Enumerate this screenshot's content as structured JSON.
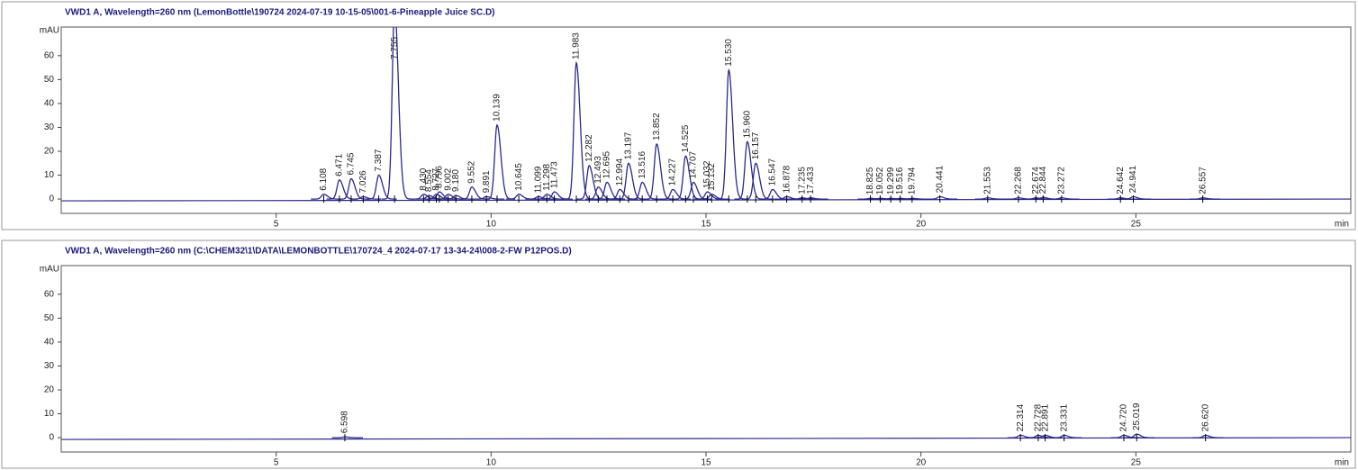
{
  "chart_data": [
    {
      "type": "line",
      "title": "VWD1 A, Wavelength=260 nm (LemonBottle\\190724 2024-07-19 10-15-05\\001-6-Pineapple Juice SC.D)",
      "xlabel": "min",
      "ylabel": "mAU",
      "color": "#2a2a8c",
      "xlim": [
        0,
        30
      ],
      "ylim": [
        -6,
        72
      ],
      "xticks": [
        5,
        10,
        15,
        20,
        25
      ],
      "yticks": [
        0,
        10,
        20,
        30,
        40,
        50,
        60
      ],
      "x": [
        6.108,
        6.471,
        6.745,
        7.026,
        7.387,
        7.755,
        {
          "value": 8.43,
          "label": "8.430"
        },
        8.554,
        8.727,
        8.796,
        9.002,
        {
          "value": 9.18,
          "label": "9.180"
        },
        9.552,
        9.891,
        10.139,
        10.645,
        11.099,
        11.298,
        11.473,
        11.983,
        12.282,
        12.493,
        12.695,
        12.994,
        13.197,
        13.516,
        13.852,
        14.227,
        14.525,
        14.707,
        15.032,
        15.132,
        {
          "value": 15.53,
          "label": "15.530"
        },
        {
          "value": 15.96,
          "label": "15.960"
        },
        16.157,
        16.547,
        16.878,
        17.235,
        17.433,
        18.825,
        19.052,
        19.299,
        19.516,
        19.794,
        20.441,
        21.553,
        22.268,
        22.674,
        22.844,
        23.272,
        24.642,
        24.941,
        26.557
      ],
      "values": [
        2,
        8,
        8.5,
        1,
        10,
        80,
        2,
        1.5,
        2,
        3,
        2,
        1.5,
        5,
        1,
        31,
        2,
        1,
        2,
        3,
        57,
        14,
        5,
        7,
        4,
        15,
        7,
        23,
        4,
        18,
        7,
        3,
        2,
        54,
        24,
        15,
        4,
        1,
        0.5,
        0.5,
        0.3,
        0.3,
        0.3,
        0.3,
        0.3,
        1,
        0.5,
        0.5,
        0.5,
        0.7,
        0.5,
        0.5,
        1,
        0.5
      ]
    },
    {
      "type": "line",
      "title": "VWD1 A, Wavelength=260 nm (C:\\CHEM32\\1\\DATA\\LEMONBOTTLE\\170724_4 2024-07-17 13-34-24\\008-2-FW P12POS.D)",
      "xlabel": "min",
      "ylabel": "mAU",
      "color": "#2a2a8c",
      "xlim": [
        0,
        30
      ],
      "ylim": [
        -6,
        72
      ],
      "xticks": [
        5,
        10,
        15,
        20,
        25
      ],
      "yticks": [
        0,
        10,
        20,
        30,
        40,
        50,
        60
      ],
      "x": [
        6.598,
        22.314,
        22.728,
        22.891,
        23.331,
        {
          "value": 24.72,
          "label": "24.720"
        },
        25.019,
        {
          "value": 26.62,
          "label": "26.620"
        }
      ],
      "values": [
        0.3,
        1,
        1,
        1,
        1,
        1,
        1.5,
        1
      ]
    }
  ]
}
